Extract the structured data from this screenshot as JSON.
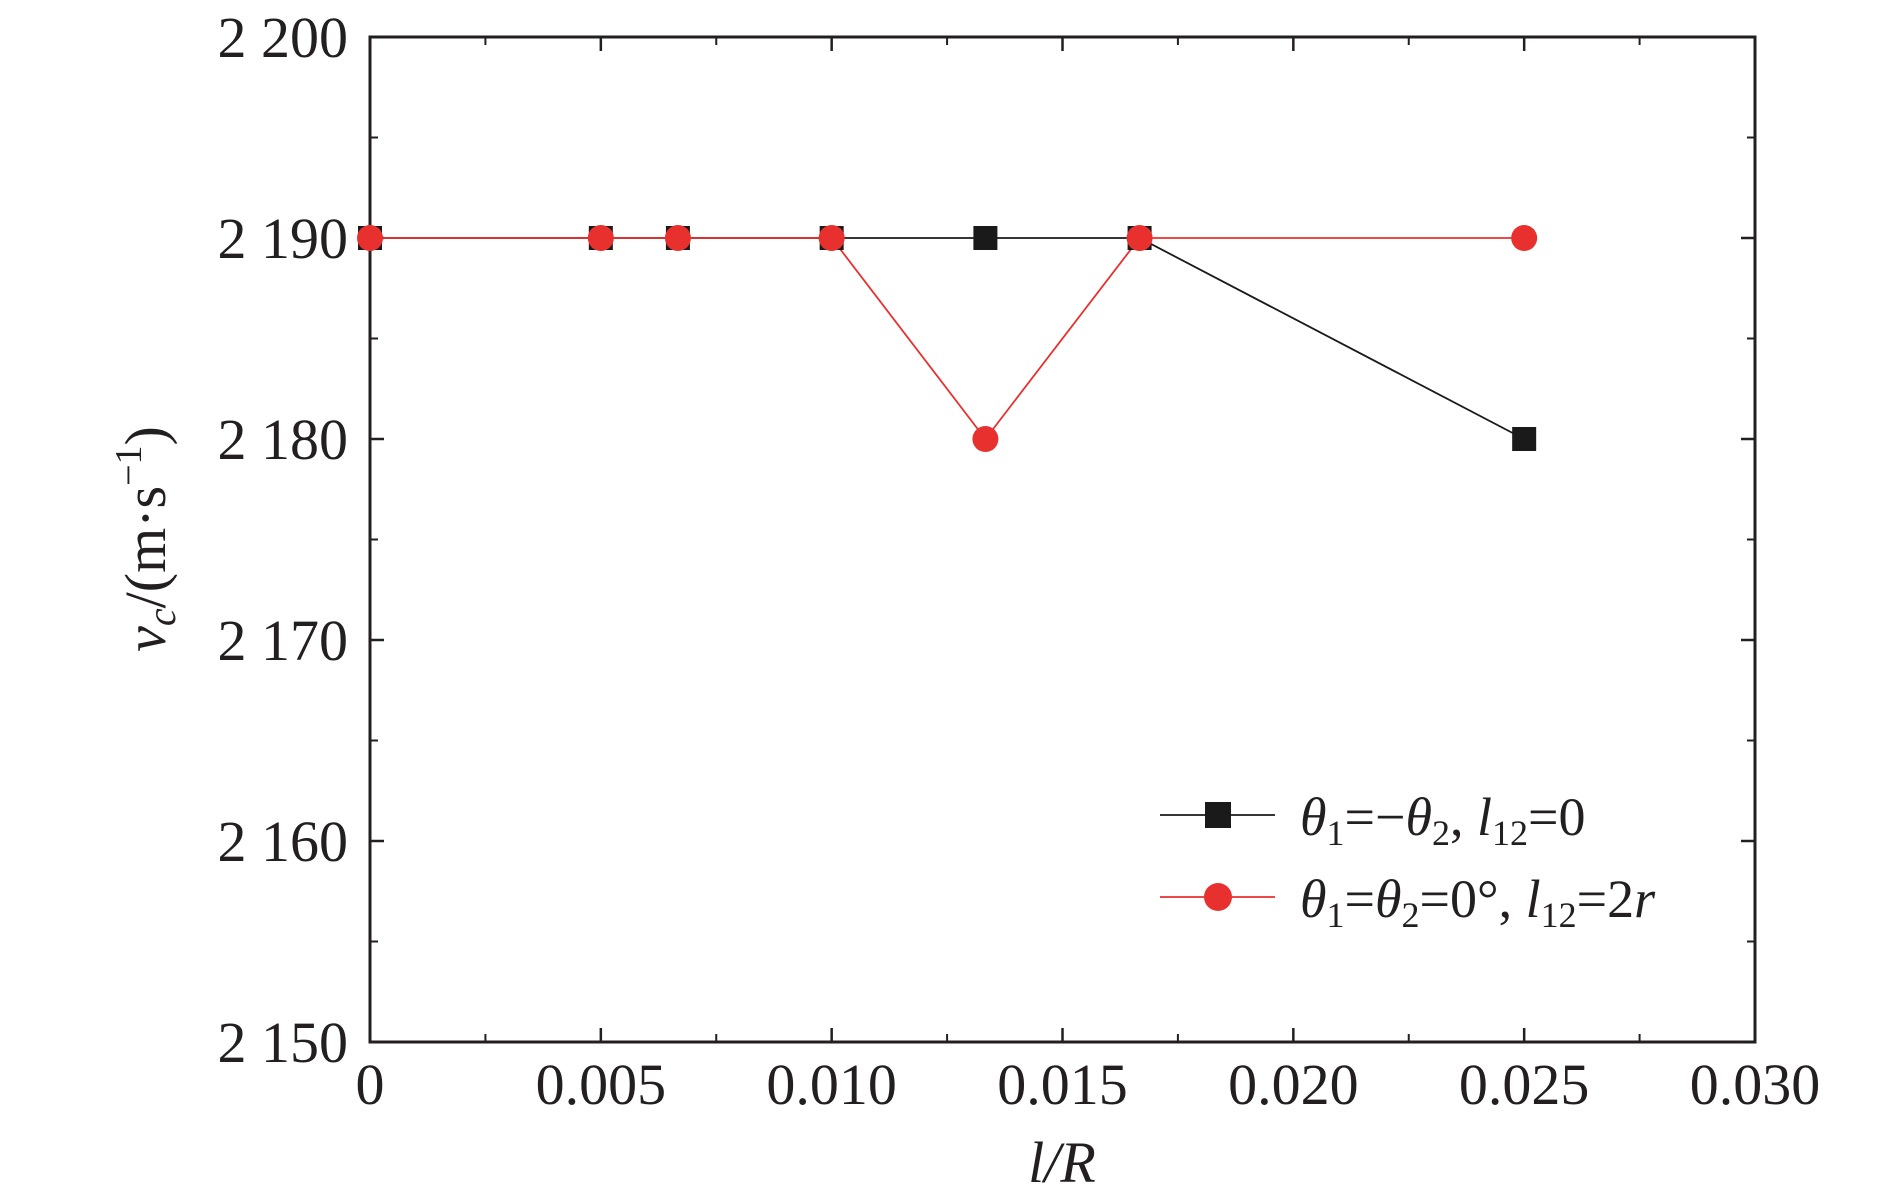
{
  "chart_data": {
    "type": "line",
    "title": "",
    "xlabel": "l/R",
    "ylabel": "vc/(m·s−1)",
    "xlim": [
      0,
      0.03
    ],
    "ylim": [
      2150,
      2200
    ],
    "x_ticks": [
      "0",
      "0.005",
      "0.010",
      "0.015",
      "0.020",
      "0.025",
      "0.030"
    ],
    "x_tick_values": [
      0,
      0.005,
      0.01,
      0.015,
      0.02,
      0.025,
      0.03
    ],
    "y_ticks": [
      "2 150",
      "2 160",
      "2 170",
      "2 180",
      "2 190",
      "2 200"
    ],
    "y_tick_values": [
      2150,
      2160,
      2170,
      2180,
      2190,
      2200
    ],
    "grid": false,
    "legend_position": "bottom-right",
    "series": [
      {
        "name": "θ1=−θ2, l12=0",
        "color": "#1a1a1a",
        "marker": "square",
        "x": [
          0,
          0.005,
          0.00667,
          0.01,
          0.01333,
          0.01667,
          0.025
        ],
        "y": [
          2190,
          2190,
          2190,
          2190,
          2190,
          2190,
          2180
        ]
      },
      {
        "name": "θ1=θ2=0°, l12=2r",
        "color": "#e8312f",
        "marker": "circle",
        "x": [
          0,
          0.005,
          0.00667,
          0.01,
          0.01333,
          0.01667,
          0.025
        ],
        "y": [
          2190,
          2190,
          2190,
          2190,
          2180,
          2190,
          2190
        ]
      }
    ]
  }
}
